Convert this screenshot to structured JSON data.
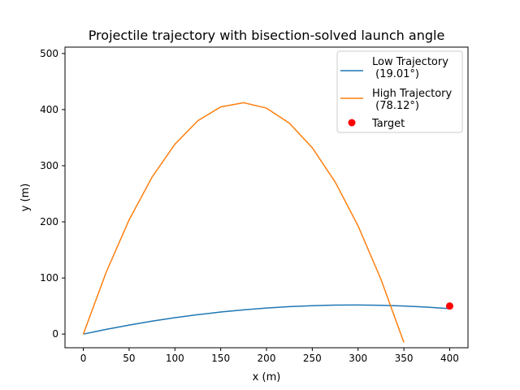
{
  "chart_data": {
    "type": "line",
    "title": "Projectile trajectory with bisection-solved launch angle",
    "xlabel": "x (m)",
    "ylabel": "y (m)",
    "xlim": [
      -20,
      420
    ],
    "ylim": [
      -24.35,
      511.35
    ],
    "xticks": [
      0,
      50,
      100,
      150,
      200,
      250,
      300,
      350,
      400
    ],
    "yticks": [
      0,
      100,
      200,
      300,
      400,
      500
    ],
    "grid": false,
    "legend_position": "top-right",
    "series": [
      {
        "name": "Low Trajectory\n (19.01°)",
        "color": "#1f77b4",
        "points": [
          [
            0,
            0
          ],
          [
            25,
            8.4
          ],
          [
            50,
            16.07
          ],
          [
            75,
            22.99
          ],
          [
            100,
            29.16
          ],
          [
            125,
            34.6
          ],
          [
            150,
            39.29
          ],
          [
            175,
            43.23
          ],
          [
            200,
            46.43
          ],
          [
            225,
            48.9
          ],
          [
            250,
            50.61
          ],
          [
            275,
            51.59
          ],
          [
            300,
            51.82
          ],
          [
            325,
            51.3
          ],
          [
            350,
            50.05
          ],
          [
            375,
            48.05
          ],
          [
            400,
            45.3
          ]
        ]
      },
      {
        "name": "High Trajectory\n (78.12°)",
        "color": "#ff7f0e",
        "points": [
          [
            0,
            0
          ],
          [
            25,
            110.31
          ],
          [
            50,
            203.5
          ],
          [
            75,
            279.53
          ],
          [
            100,
            338.41
          ],
          [
            125,
            380.16
          ],
          [
            150,
            404.8
          ],
          [
            175,
            412.29
          ],
          [
            200,
            402.65
          ],
          [
            225,
            375.88
          ],
          [
            250,
            331.98
          ],
          [
            275,
            270.95
          ],
          [
            300,
            192.79
          ],
          [
            325,
            97.48
          ],
          [
            350,
            -14.99
          ]
        ]
      }
    ],
    "target": {
      "name": "Target",
      "color": "#ff0000",
      "x": 400,
      "y": 50
    }
  }
}
